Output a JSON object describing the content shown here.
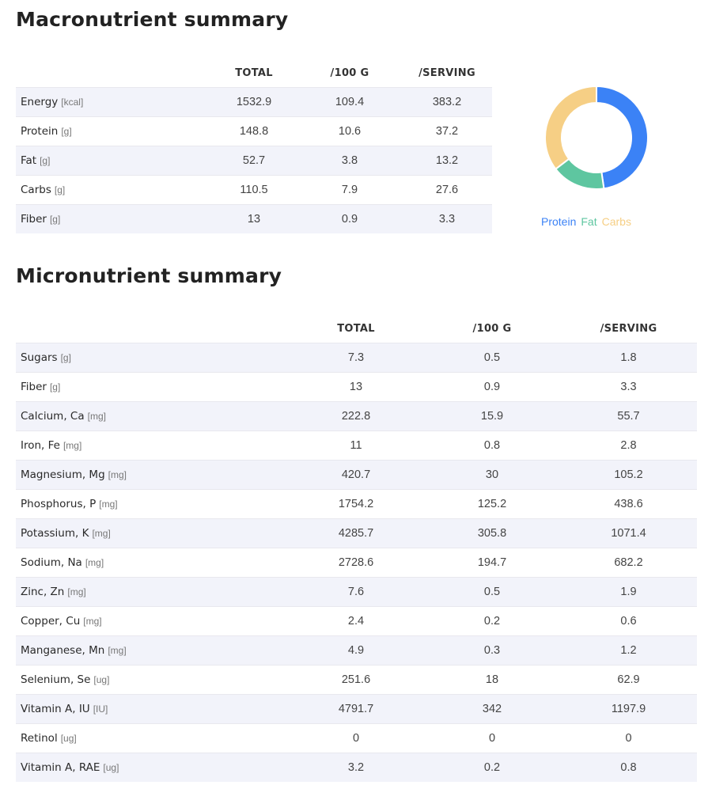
{
  "macro": {
    "title": "Macronutrient summary",
    "headers": [
      "",
      "TOTAL",
      "/100 G",
      "/SERVING"
    ],
    "rows": [
      {
        "name": "Energy",
        "unit": "[kcal]",
        "total": "1532.9",
        "per100": "109.4",
        "serving": "383.2"
      },
      {
        "name": "Protein",
        "unit": "[g]",
        "total": "148.8",
        "per100": "10.6",
        "serving": "37.2"
      },
      {
        "name": "Fat",
        "unit": "[g]",
        "total": "52.7",
        "per100": "3.8",
        "serving": "13.2"
      },
      {
        "name": "Carbs",
        "unit": "[g]",
        "total": "110.5",
        "per100": "7.9",
        "serving": "27.6"
      },
      {
        "name": "Fiber",
        "unit": "[g]",
        "total": "13",
        "per100": "0.9",
        "serving": "3.3"
      }
    ]
  },
  "chart_data": {
    "type": "pie",
    "categories": [
      "Protein",
      "Fat",
      "Carbs"
    ],
    "values": [
      148.8,
      52.7,
      110.5
    ],
    "colors": [
      "#3b82f6",
      "#5ec6a0",
      "#f6cf85"
    ],
    "legend": "bottom"
  },
  "micro": {
    "title": "Micronutrient summary",
    "headers": [
      "",
      "TOTAL",
      "/100 G",
      "/SERVING"
    ],
    "rows": [
      {
        "name": "Sugars",
        "unit": "[g]",
        "total": "7.3",
        "per100": "0.5",
        "serving": "1.8"
      },
      {
        "name": "Fiber",
        "unit": "[g]",
        "total": "13",
        "per100": "0.9",
        "serving": "3.3"
      },
      {
        "name": "Calcium, Ca",
        "unit": "[mg]",
        "total": "222.8",
        "per100": "15.9",
        "serving": "55.7"
      },
      {
        "name": "Iron, Fe",
        "unit": "[mg]",
        "total": "11",
        "per100": "0.8",
        "serving": "2.8"
      },
      {
        "name": "Magnesium, Mg",
        "unit": "[mg]",
        "total": "420.7",
        "per100": "30",
        "serving": "105.2"
      },
      {
        "name": "Phosphorus, P",
        "unit": "[mg]",
        "total": "1754.2",
        "per100": "125.2",
        "serving": "438.6"
      },
      {
        "name": "Potassium, K",
        "unit": "[mg]",
        "total": "4285.7",
        "per100": "305.8",
        "serving": "1071.4"
      },
      {
        "name": "Sodium, Na",
        "unit": "[mg]",
        "total": "2728.6",
        "per100": "194.7",
        "serving": "682.2"
      },
      {
        "name": "Zinc, Zn",
        "unit": "[mg]",
        "total": "7.6",
        "per100": "0.5",
        "serving": "1.9"
      },
      {
        "name": "Copper, Cu",
        "unit": "[mg]",
        "total": "2.4",
        "per100": "0.2",
        "serving": "0.6"
      },
      {
        "name": "Manganese, Mn",
        "unit": "[mg]",
        "total": "4.9",
        "per100": "0.3",
        "serving": "1.2"
      },
      {
        "name": "Selenium, Se",
        "unit": "[ug]",
        "total": "251.6",
        "per100": "18",
        "serving": "62.9"
      },
      {
        "name": "Vitamin A, IU",
        "unit": "[IU]",
        "total": "4791.7",
        "per100": "342",
        "serving": "1197.9"
      },
      {
        "name": "Retinol",
        "unit": "[ug]",
        "total": "0",
        "per100": "0",
        "serving": "0"
      },
      {
        "name": "Vitamin A, RAE",
        "unit": "[ug]",
        "total": "3.2",
        "per100": "0.2",
        "serving": "0.8"
      }
    ]
  }
}
